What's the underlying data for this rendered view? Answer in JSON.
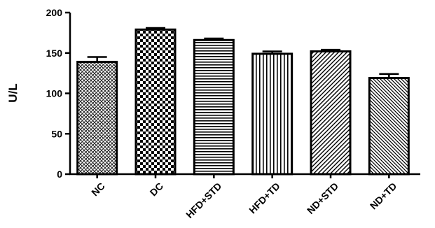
{
  "chart_data": {
    "type": "bar",
    "title": "",
    "xlabel": "",
    "ylabel": "U/L",
    "ylim": [
      0,
      200
    ],
    "yticks": [
      0,
      50,
      100,
      150,
      200
    ],
    "grid": false,
    "categories": [
      "NC",
      "DC",
      "HFD+STD",
      "HFD+TD",
      "ND+STD",
      "ND+TD"
    ],
    "values": [
      139,
      179,
      166,
      149,
      152,
      119
    ],
    "errors": [
      6,
      2,
      2,
      3,
      2,
      5
    ],
    "patterns": [
      "fine-diagonal-crosshatch",
      "checkerboard",
      "horizontal-lines",
      "vertical-lines",
      "diagonal-lines",
      "diagonal-lines-fine"
    ],
    "bar_color": "#000000"
  }
}
